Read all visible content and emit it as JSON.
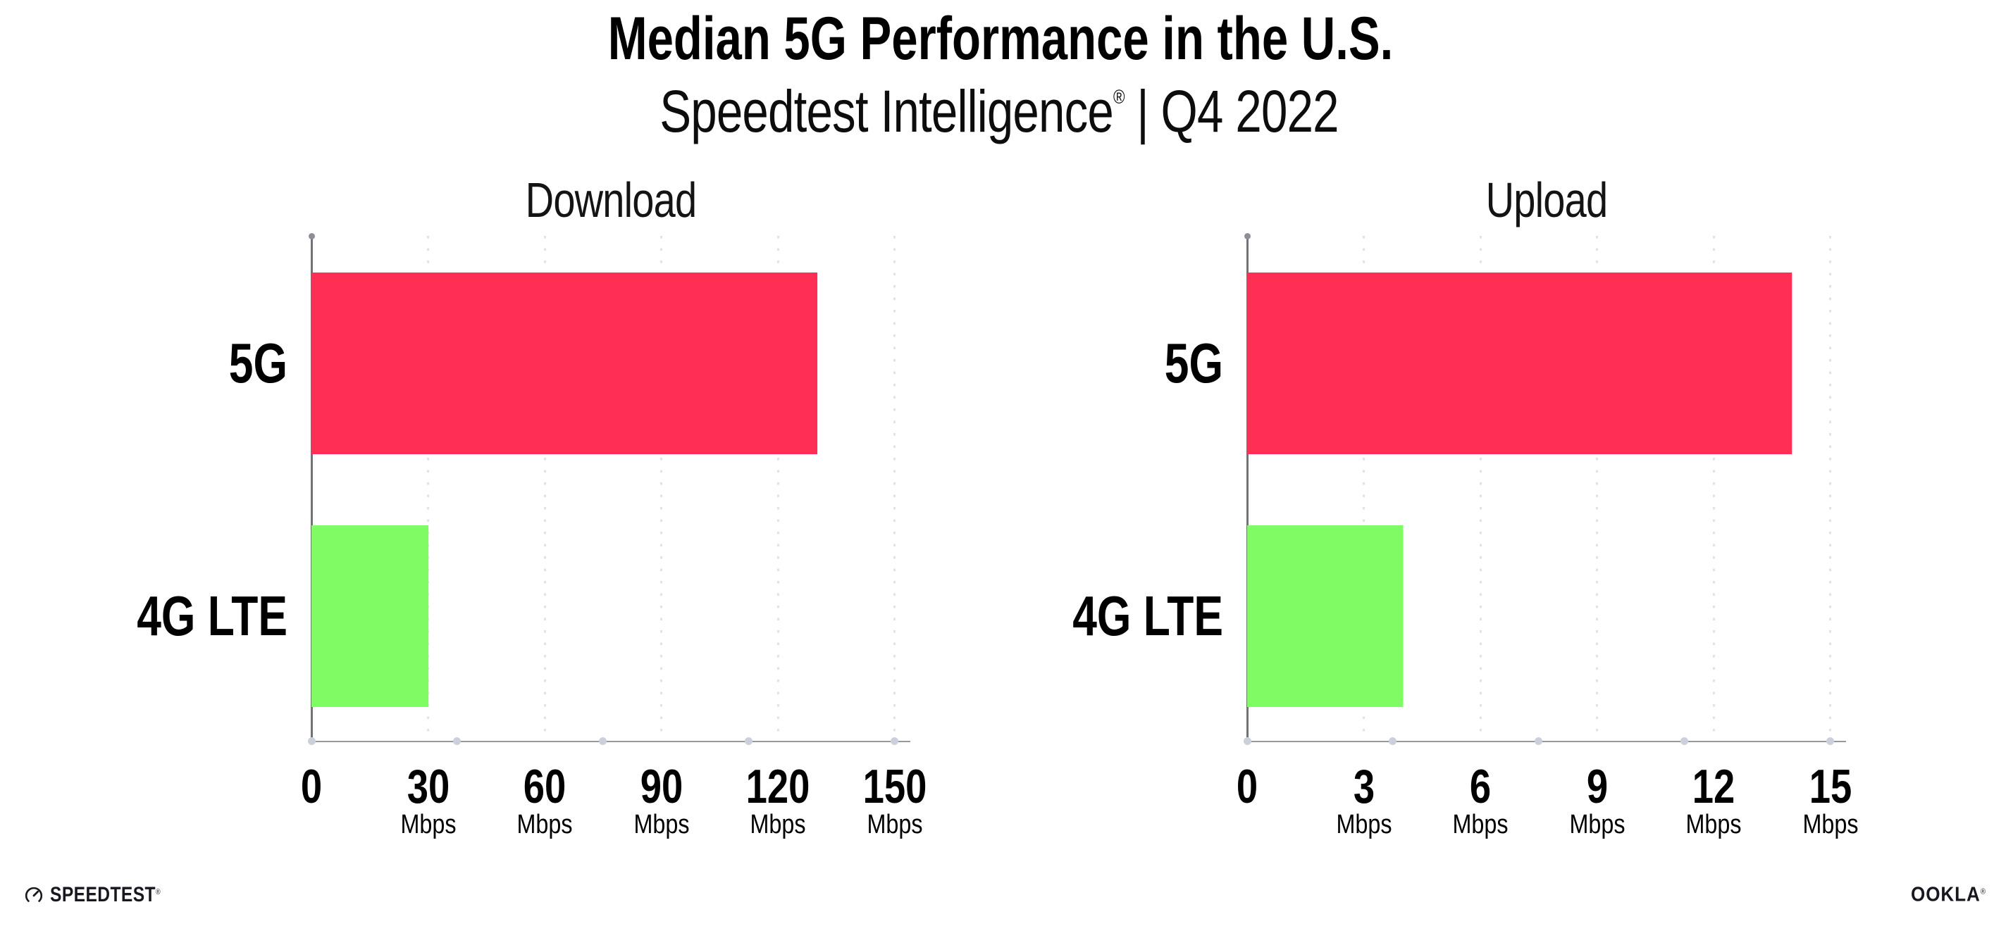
{
  "header": {
    "title": "Median 5G Performance in the U.S.",
    "subtitle_brand": "Speedtest Intelligence",
    "subtitle_reg": "®",
    "subtitle_sep": "|",
    "subtitle_period": "Q4 2022"
  },
  "chart_data": [
    {
      "type": "bar",
      "orientation": "horizontal",
      "title": "Download",
      "categories": [
        "5G",
        "4G LTE"
      ],
      "values": [
        130,
        30
      ],
      "unit": "Mbps",
      "ticks": [
        0,
        30,
        60,
        90,
        120,
        150
      ],
      "xlim": [
        0,
        154
      ],
      "grid": "dotted-vertical",
      "legend": "none",
      "bar_colors": [
        "#ff2e55",
        "#7ffb63"
      ]
    },
    {
      "type": "bar",
      "orientation": "horizontal",
      "title": "Upload",
      "categories": [
        "5G",
        "4G LTE"
      ],
      "values": [
        14,
        4
      ],
      "unit": "Mbps",
      "ticks": [
        0,
        3,
        6,
        9,
        12,
        15
      ],
      "xlim": [
        0,
        15.4
      ],
      "grid": "dotted-vertical",
      "legend": "none",
      "bar_colors": [
        "#ff2e55",
        "#7ffb63"
      ]
    }
  ],
  "colors": {
    "bar_5g": "#ff2e55",
    "bar_4g_lte": "#7ffb63",
    "axis_line": "#72727c",
    "baseline": "#97979f",
    "gridline_dot": "#e0e1ec",
    "baseline_dot": "#ccd0da",
    "text": "#000000"
  },
  "footer": {
    "speedtest_label": "SPEEDTEST",
    "speedtest_reg": "®",
    "speedtest_icon": "speedometer-gauge-icon",
    "ookla_label": "OOKLA",
    "ookla_reg": "®"
  }
}
